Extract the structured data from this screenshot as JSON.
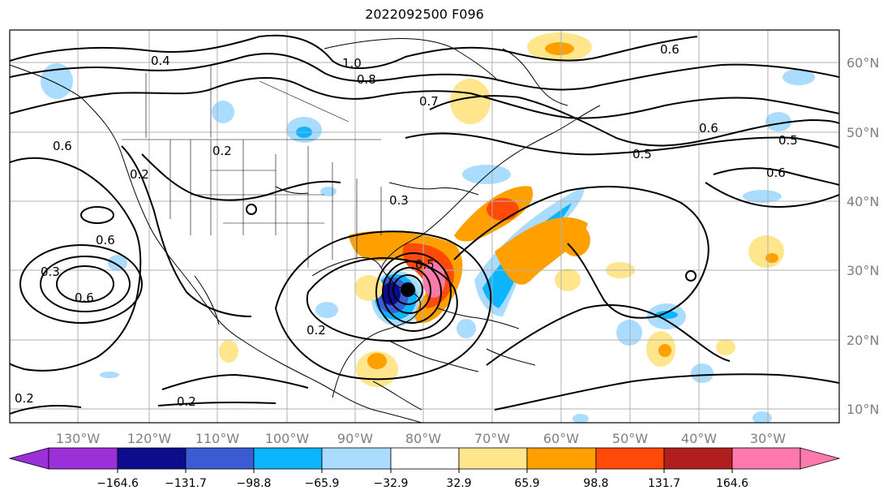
{
  "map": {
    "title": "2022092500 F096",
    "lon_labels": [
      "130°W",
      "120°W",
      "110°W",
      "100°W",
      "90°W",
      "80°W",
      "70°W",
      "60°W",
      "50°W",
      "40°W",
      "30°W"
    ],
    "lat_labels": [
      "60°N",
      "50°N",
      "40°N",
      "30°N",
      "20°N",
      "10°N"
    ],
    "contour_labels": [
      "0.4",
      "1.0",
      "0.8",
      "0.7",
      "0.6",
      "0.6",
      "0.5",
      "0.5",
      "0.6",
      "0.2",
      "0.2",
      "0.3",
      "0.6",
      "0.3",
      "0.6",
      "0.6",
      "0.5",
      "0.2",
      "0.2",
      "0.2"
    ],
    "colorbar_labels": [
      "−164.6",
      "−131.7",
      "−98.8",
      "−65.9",
      "−32.9",
      "32.9",
      "65.9",
      "98.8",
      "131.7",
      "164.6"
    ],
    "colorbar_colors": [
      "#9b30d9",
      "#0c0c8c",
      "#3a5bd1",
      "#0db4ff",
      "#a9dcff",
      "#ffffff",
      "#ffe68c",
      "#ffa000",
      "#ff4a0a",
      "#b01e1e",
      "#ff7aac",
      "#ff7aac"
    ],
    "fill_colors": {
      "pos1": "#ffe68c",
      "pos2": "#ffa000",
      "pos3": "#ff4a0a",
      "pos4": "#b01e1e",
      "pos5": "#ff7aac",
      "neg1": "#a9dcff",
      "neg2": "#0db4ff",
      "neg3": "#3a5bd1",
      "neg4": "#0c0c8c"
    }
  }
}
